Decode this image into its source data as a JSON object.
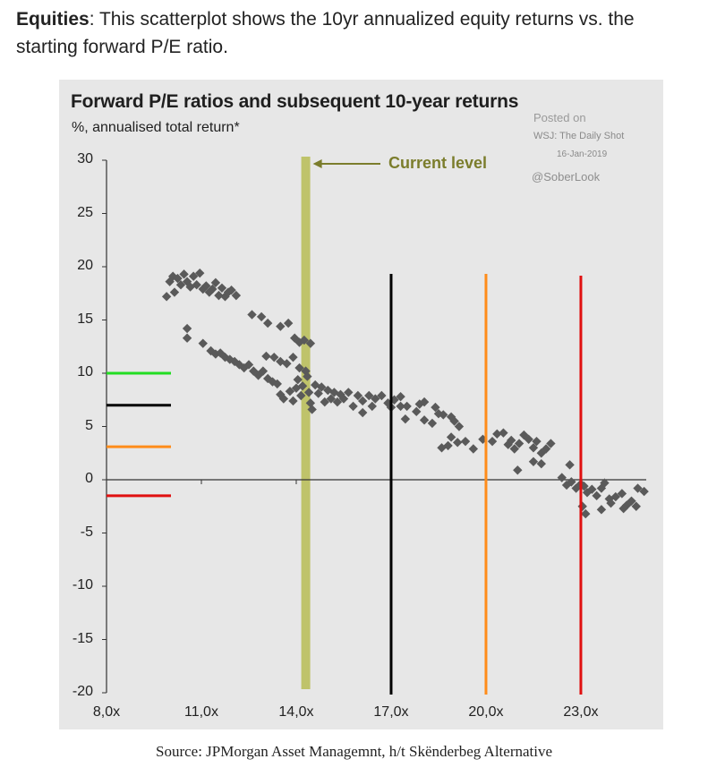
{
  "intro": {
    "bold": "Equities",
    "text": ": This scatterplot shows the 10yr annualized equity returns vs. the starting forward P/E ratio."
  },
  "source": "Source: JPMorgan Asset Managemnt, h/t Skënderbeg Alternative",
  "watermark": {
    "posted": "Posted on",
    "site": "WSJ: The Daily Shot",
    "date": "16-Jan-2019",
    "handle": "@SoberLook"
  },
  "chart_data": {
    "type": "scatter",
    "title": "Forward P/E ratios and subsequent 10-year returns",
    "subtitle": "%, annualised total return*",
    "xlim": [
      8,
      25
    ],
    "ylim": [
      -20,
      30
    ],
    "xticks": [
      8,
      11,
      14,
      17,
      20,
      23
    ],
    "xtick_labels": [
      "8,0x",
      "11,0x",
      "14,0x",
      "17,0x",
      "20,0x",
      "23,0x"
    ],
    "yticks": [
      30,
      25,
      20,
      15,
      10,
      5,
      0,
      -5,
      -10,
      -15,
      -20
    ],
    "ytick_labels": [
      "30",
      "25",
      "20",
      "15",
      "10",
      "5",
      "0",
      "-5",
      "-10",
      "-15",
      "-20"
    ],
    "grid": false,
    "current_level": {
      "x": 14.3,
      "label": "Current level",
      "color": "#bfc36a"
    },
    "annotation_lines": [
      {
        "x": 17.0,
        "color": "#000000"
      },
      {
        "x": 20.0,
        "color": "#ff8c1a"
      },
      {
        "x": 23.0,
        "color": "#e01010"
      }
    ],
    "left_markers": [
      {
        "y": 10.0,
        "color": "#22dd22"
      },
      {
        "y": 7.0,
        "color": "#000000"
      },
      {
        "y": 3.1,
        "color": "#ff8c1a"
      },
      {
        "y": -1.5,
        "color": "#e01010"
      }
    ],
    "marker_color": "#5a5a5a",
    "points": [
      [
        9.9,
        17.2
      ],
      [
        10.0,
        18.6
      ],
      [
        10.1,
        19.1
      ],
      [
        10.15,
        17.6
      ],
      [
        10.25,
        18.9
      ],
      [
        10.35,
        18.3
      ],
      [
        10.45,
        19.3
      ],
      [
        10.55,
        18.6
      ],
      [
        10.65,
        18.1
      ],
      [
        10.75,
        19.1
      ],
      [
        10.85,
        18.3
      ],
      [
        10.95,
        19.4
      ],
      [
        11.05,
        17.9
      ],
      [
        11.15,
        18.2
      ],
      [
        11.25,
        17.6
      ],
      [
        11.35,
        17.9
      ],
      [
        11.45,
        18.5
      ],
      [
        11.55,
        17.3
      ],
      [
        11.65,
        18.0
      ],
      [
        11.75,
        17.2
      ],
      [
        11.85,
        17.6
      ],
      [
        11.95,
        17.8
      ],
      [
        12.1,
        17.3
      ],
      [
        10.55,
        14.2
      ],
      [
        10.55,
        13.3
      ],
      [
        11.05,
        12.8
      ],
      [
        11.3,
        12.1
      ],
      [
        11.45,
        11.8
      ],
      [
        11.6,
        11.9
      ],
      [
        11.75,
        11.5
      ],
      [
        11.9,
        11.3
      ],
      [
        12.05,
        11.1
      ],
      [
        12.2,
        10.8
      ],
      [
        12.35,
        10.5
      ],
      [
        12.5,
        10.8
      ],
      [
        12.65,
        10.2
      ],
      [
        12.8,
        9.8
      ],
      [
        12.95,
        10.2
      ],
      [
        13.1,
        9.5
      ],
      [
        13.25,
        9.2
      ],
      [
        13.4,
        9.0
      ],
      [
        12.6,
        15.5
      ],
      [
        12.9,
        15.3
      ],
      [
        13.1,
        14.7
      ],
      [
        13.5,
        14.4
      ],
      [
        13.75,
        14.7
      ],
      [
        13.95,
        13.3
      ],
      [
        14.1,
        12.9
      ],
      [
        14.25,
        13.1
      ],
      [
        14.45,
        12.8
      ],
      [
        13.05,
        11.6
      ],
      [
        13.3,
        11.5
      ],
      [
        13.5,
        11.1
      ],
      [
        13.7,
        10.9
      ],
      [
        13.9,
        11.5
      ],
      [
        13.5,
        8.0
      ],
      [
        13.6,
        7.6
      ],
      [
        13.8,
        8.3
      ],
      [
        13.9,
        7.4
      ],
      [
        14.0,
        8.6
      ],
      [
        14.05,
        9.4
      ],
      [
        14.1,
        10.5
      ],
      [
        14.15,
        7.9
      ],
      [
        14.2,
        8.8
      ],
      [
        14.3,
        10.2
      ],
      [
        14.35,
        9.7
      ],
      [
        14.4,
        8.2
      ],
      [
        14.45,
        7.2
      ],
      [
        14.5,
        6.6
      ],
      [
        14.6,
        8.9
      ],
      [
        14.7,
        8.1
      ],
      [
        14.8,
        8.7
      ],
      [
        14.9,
        7.3
      ],
      [
        15.0,
        8.4
      ],
      [
        15.1,
        7.6
      ],
      [
        15.2,
        8.2
      ],
      [
        15.3,
        7.3
      ],
      [
        15.4,
        8.0
      ],
      [
        15.5,
        7.6
      ],
      [
        15.65,
        8.2
      ],
      [
        15.8,
        6.9
      ],
      [
        15.95,
        7.9
      ],
      [
        16.1,
        7.4
      ],
      [
        16.3,
        7.9
      ],
      [
        16.5,
        7.6
      ],
      [
        16.7,
        7.9
      ],
      [
        16.9,
        7.2
      ],
      [
        17.1,
        7.5
      ],
      [
        17.3,
        7.8
      ],
      [
        17.5,
        6.9
      ],
      [
        16.1,
        6.3
      ],
      [
        16.4,
        6.9
      ],
      [
        17.0,
        6.8
      ],
      [
        17.3,
        6.9
      ],
      [
        17.45,
        5.7
      ],
      [
        17.8,
        6.4
      ],
      [
        17.9,
        7.1
      ],
      [
        18.05,
        7.3
      ],
      [
        18.4,
        6.8
      ],
      [
        18.5,
        6.2
      ],
      [
        18.65,
        6.1
      ],
      [
        18.9,
        5.9
      ],
      [
        19.0,
        5.5
      ],
      [
        19.15,
        5.0
      ],
      [
        18.05,
        5.6
      ],
      [
        18.3,
        5.3
      ],
      [
        18.6,
        3.0
      ],
      [
        18.8,
        3.2
      ],
      [
        18.9,
        4.0
      ],
      [
        19.1,
        3.5
      ],
      [
        19.35,
        3.6
      ],
      [
        19.6,
        2.9
      ],
      [
        19.9,
        3.8
      ],
      [
        20.2,
        3.6
      ],
      [
        20.35,
        4.3
      ],
      [
        20.55,
        4.4
      ],
      [
        20.7,
        3.3
      ],
      [
        20.8,
        3.7
      ],
      [
        20.9,
        2.9
      ],
      [
        21.05,
        3.4
      ],
      [
        21.2,
        4.2
      ],
      [
        21.35,
        3.8
      ],
      [
        21.5,
        3.0
      ],
      [
        21.6,
        3.6
      ],
      [
        21.75,
        2.5
      ],
      [
        21.9,
        2.9
      ],
      [
        22.05,
        3.4
      ],
      [
        21.0,
        0.9
      ],
      [
        21.5,
        1.7
      ],
      [
        21.75,
        1.5
      ],
      [
        22.4,
        0.2
      ],
      [
        22.55,
        -0.5
      ],
      [
        22.7,
        -0.2
      ],
      [
        22.85,
        -0.8
      ],
      [
        23.0,
        -0.4
      ],
      [
        23.1,
        -0.6
      ],
      [
        23.2,
        -1.2
      ],
      [
        23.35,
        -0.9
      ],
      [
        23.5,
        -1.5
      ],
      [
        23.65,
        -0.8
      ],
      [
        23.75,
        -0.3
      ],
      [
        23.9,
        -1.8
      ],
      [
        24.1,
        -1.6
      ],
      [
        24.3,
        -1.3
      ],
      [
        24.45,
        -2.4
      ],
      [
        24.6,
        -2.0
      ],
      [
        24.8,
        -0.8
      ],
      [
        25.0,
        -1.1
      ],
      [
        22.65,
        1.4
      ],
      [
        23.05,
        -2.5
      ],
      [
        23.15,
        -3.2
      ],
      [
        23.65,
        -2.8
      ],
      [
        23.95,
        -2.2
      ],
      [
        24.35,
        -2.7
      ],
      [
        24.75,
        -2.5
      ]
    ]
  }
}
